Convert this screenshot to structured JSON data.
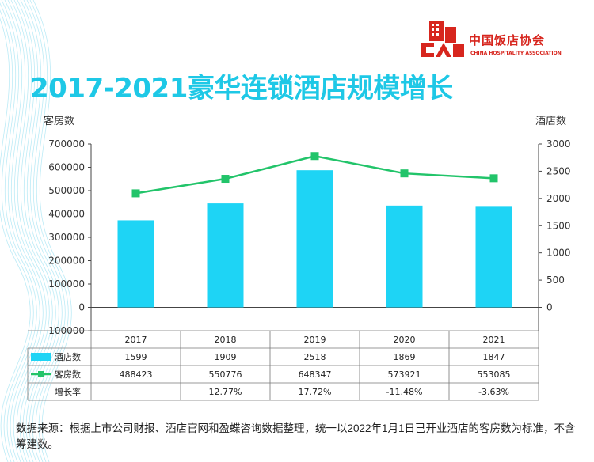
{
  "header": {
    "title": "2017-2021豪华连锁酒店规模增长",
    "logo_cn": "中国饭店协会",
    "logo_en": "CHINA HOSPITALITY ASSOCIATION"
  },
  "chart_data": {
    "type": "bar",
    "ylabel_left": "客房数",
    "ylabel_right": "酒店数",
    "categories": [
      "2017",
      "2018",
      "2019",
      "2020",
      "2021"
    ],
    "left_axis": {
      "min": -100000,
      "max": 700000,
      "step": 100000,
      "ticks": [
        "700000",
        "600000",
        "500000",
        "400000",
        "300000",
        "200000",
        "100000",
        "0",
        "-100000"
      ]
    },
    "right_axis": {
      "min": 0,
      "max": 3000,
      "step": 500,
      "ticks": [
        "3000",
        "2500",
        "2000",
        "1500",
        "1000",
        "500",
        "0"
      ]
    },
    "series": [
      {
        "name": "酒店数",
        "type": "bar",
        "axis": "right",
        "color": "#1ed4f5",
        "values": [
          1599,
          1909,
          2518,
          1869,
          1847
        ],
        "labels": [
          "1599",
          "1909",
          "2518",
          "1869",
          "1847"
        ]
      },
      {
        "name": "客房数",
        "type": "line",
        "axis": "left",
        "color": "#22c46a",
        "values": [
          488423,
          550776,
          648347,
          573921,
          553085
        ],
        "labels": [
          "488423",
          "550776",
          "648347",
          "573921",
          "553085"
        ]
      }
    ],
    "growth_row": {
      "name": "增长率",
      "labels": [
        "",
        "12.77%",
        "17.72%",
        "-11.48%",
        "-3.63%"
      ]
    },
    "grid": false
  },
  "footnote": "数据来源：根据上市公司财报、酒店官网和盈蝶咨询数据整理，统一以2022年1月1日已开业酒店的客房数为标准，不含筹建数。"
}
